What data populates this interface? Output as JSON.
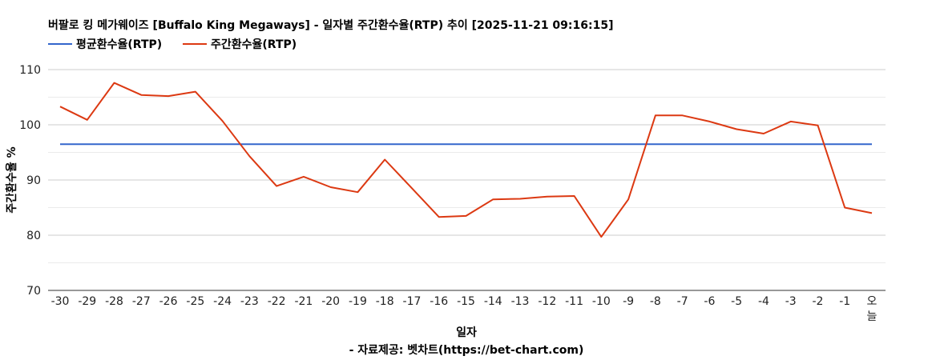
{
  "chart_data": {
    "type": "line",
    "title": "버팔로 킹 메가웨이즈 [Buffalo King Megaways] - 일자별 주간환수율(RTP) 추이 [2025-11-21 09:16:15]",
    "xlabel": "일자",
    "ylabel": "주간환수율 %",
    "source": "- 자료제공: 벳차트(https://bet-chart.com)",
    "ylim": [
      70,
      110
    ],
    "yticks": [
      70,
      80,
      90,
      100,
      110
    ],
    "grid": true,
    "legend_position": "top-left",
    "categories": [
      "-30",
      "-29",
      "-28",
      "-27",
      "-26",
      "-25",
      "-24",
      "-23",
      "-22",
      "-21",
      "-20",
      "-19",
      "-18",
      "-17",
      "-16",
      "-15",
      "-14",
      "-13",
      "-12",
      "-11",
      "-10",
      "-9",
      "-8",
      "-7",
      "-6",
      "-5",
      "-4",
      "-3",
      "-2",
      "-1",
      "오늘"
    ],
    "series": [
      {
        "name": "평균환수율(RTP)",
        "color": "#3366cc",
        "values": [
          96.5,
          96.5,
          96.5,
          96.5,
          96.5,
          96.5,
          96.5,
          96.5,
          96.5,
          96.5,
          96.5,
          96.5,
          96.5,
          96.5,
          96.5,
          96.5,
          96.5,
          96.5,
          96.5,
          96.5,
          96.5,
          96.5,
          96.5,
          96.5,
          96.5,
          96.5,
          96.5,
          96.5,
          96.5,
          96.5,
          96.5
        ]
      },
      {
        "name": "주간환수율(RTP)",
        "color": "#dc3912",
        "values": [
          103.3,
          100.9,
          107.6,
          105.4,
          105.2,
          106.0,
          100.7,
          94.3,
          88.9,
          90.6,
          88.7,
          87.8,
          93.7,
          88.5,
          83.3,
          83.5,
          86.5,
          86.6,
          87.0,
          87.1,
          79.7,
          86.5,
          101.7,
          101.7,
          100.6,
          99.2,
          98.4,
          100.6,
          99.9,
          85.0,
          84.0
        ]
      }
    ]
  }
}
